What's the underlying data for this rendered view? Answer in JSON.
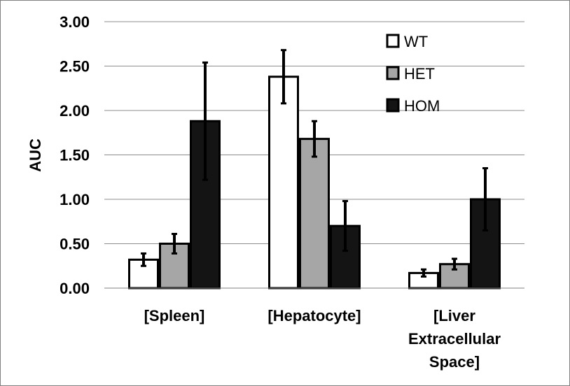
{
  "chart_data": {
    "type": "bar",
    "title": "",
    "xlabel": "",
    "ylabel": "AUC",
    "ylim": [
      0,
      3
    ],
    "yticks": [
      "0.00",
      "0.50",
      "1.00",
      "1.50",
      "2.00",
      "2.50",
      "3.00"
    ],
    "yticks_values": [
      0,
      0.5,
      1,
      1.5,
      2,
      2.5,
      3
    ],
    "grid": true,
    "legend_position": "top-right",
    "categories": [
      [
        "[Spleen]"
      ],
      [
        "[Hepatocyte]"
      ],
      [
        "[Liver",
        "Extracellular",
        "Space]"
      ]
    ],
    "series": [
      {
        "name": "WT",
        "color": "#ffffff",
        "values": [
          0.32,
          2.38,
          0.17
        ],
        "errors": [
          0.07,
          0.3,
          0.04
        ]
      },
      {
        "name": "HET",
        "color": "#a6a6a6",
        "values": [
          0.5,
          1.68,
          0.27
        ],
        "errors": [
          0.11,
          0.2,
          0.06
        ]
      },
      {
        "name": "HOM",
        "color": "#141414",
        "values": [
          1.88,
          0.7,
          1.0
        ],
        "errors": [
          0.66,
          0.28,
          0.35
        ]
      }
    ]
  }
}
